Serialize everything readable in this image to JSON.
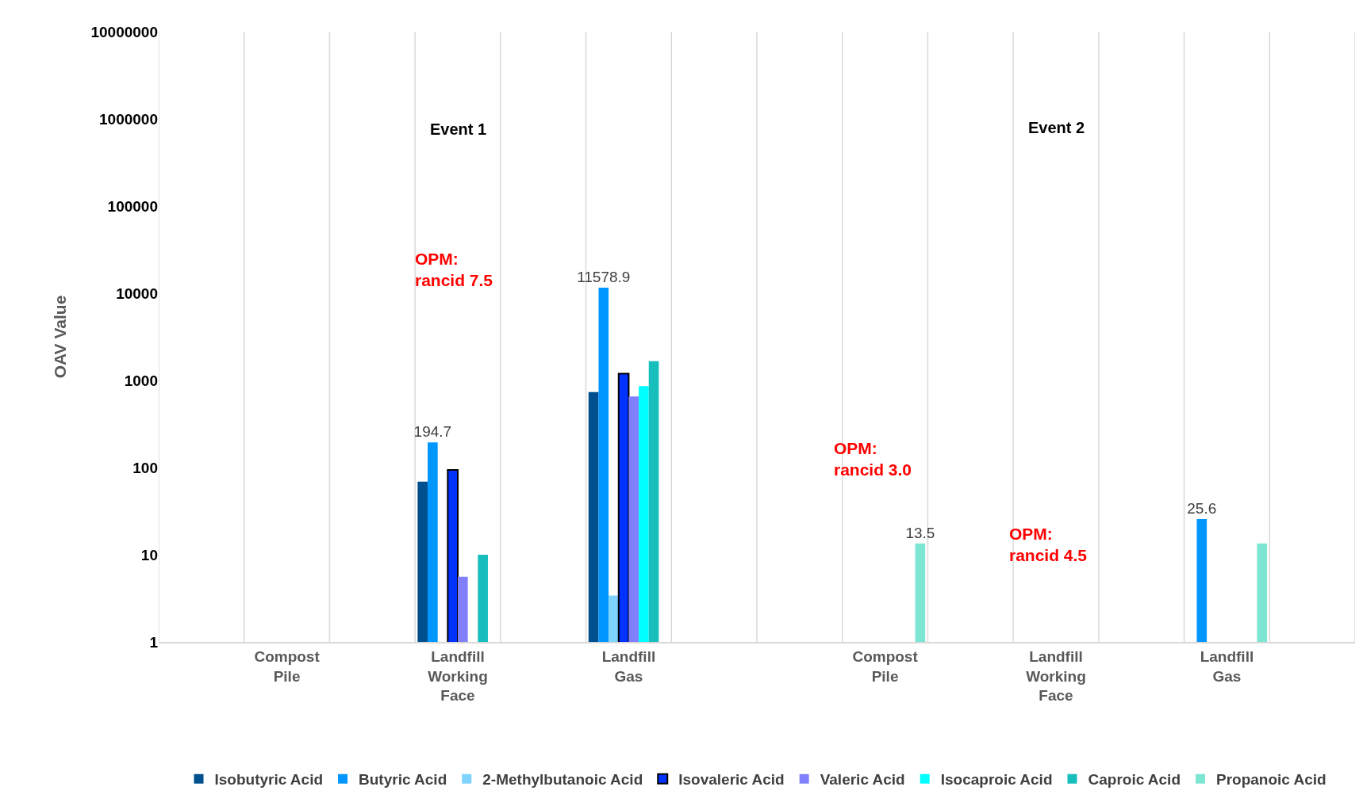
{
  "chart_data": {
    "type": "bar",
    "ylabel": "OAV Value",
    "categories": [
      null,
      "Compost Pile",
      null,
      "Landfill Working Face",
      null,
      "Landfill Gas",
      null,
      null,
      "Compost Pile",
      null,
      "Landfill Working Face",
      null,
      "Landfill Gas",
      null
    ],
    "series": [
      {
        "name": "Isobutyric Acid",
        "color": "#00508f",
        "values": [
          null,
          null,
          null,
          69,
          null,
          733,
          null,
          null,
          null,
          null,
          null,
          null,
          null,
          null
        ]
      },
      {
        "name": "Butyric Acid",
        "color": "#0096ff",
        "values": [
          null,
          null,
          null,
          194.7,
          null,
          11578.9,
          null,
          null,
          null,
          null,
          null,
          null,
          25.6,
          null
        ],
        "value_labels": [
          null,
          null,
          null,
          "194.7",
          null,
          "11578.9",
          null,
          null,
          null,
          null,
          null,
          null,
          "25.6",
          null
        ]
      },
      {
        "name": "2-Methylbutanoic Acid",
        "color": "#7fd3ff",
        "values": [
          null,
          null,
          null,
          null,
          null,
          3.4,
          null,
          null,
          null,
          null,
          null,
          null,
          null,
          null
        ]
      },
      {
        "name": "Isovaleric Acid",
        "color": "#0033ff",
        "values": [
          null,
          null,
          null,
          94,
          null,
          1194,
          null,
          null,
          null,
          null,
          null,
          null,
          null,
          null
        ]
      },
      {
        "name": "Valeric Acid",
        "color": "#8080ff",
        "values": [
          null,
          null,
          null,
          5.6,
          null,
          656,
          null,
          null,
          null,
          null,
          null,
          null,
          null,
          null
        ]
      },
      {
        "name": "Isocaproic Acid",
        "color": "#00ffff",
        "values": [
          null,
          null,
          null,
          null,
          null,
          857,
          null,
          null,
          null,
          null,
          null,
          null,
          null,
          null
        ]
      },
      {
        "name": "Caproic Acid",
        "color": "#17bebb",
        "values": [
          null,
          null,
          null,
          10,
          null,
          1660,
          null,
          null,
          null,
          null,
          null,
          null,
          null,
          null
        ]
      },
      {
        "name": "Propanoic Acid",
        "color": "#7de6d3",
        "values": [
          null,
          null,
          null,
          null,
          null,
          null,
          null,
          null,
          13.5,
          null,
          null,
          null,
          13.5,
          null
        ],
        "value_labels": [
          null,
          null,
          null,
          null,
          null,
          null,
          null,
          null,
          "13.5",
          null,
          null,
          null,
          null,
          null
        ]
      }
    ],
    "annotations": [
      "Event 1",
      "Event 2",
      "OPM:\nrancid 7.5",
      "OPM:\nrancid 3.0",
      "OPM:\nrancid 4.5"
    ],
    "log": true,
    "ylim": [
      1,
      10000000
    ],
    "yticks": [
      1,
      10,
      100,
      1000,
      10000,
      100000,
      1000000,
      10000000
    ],
    "grid": "x",
    "legend": "bottom"
  }
}
